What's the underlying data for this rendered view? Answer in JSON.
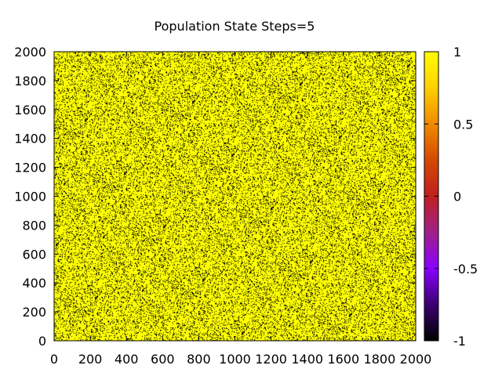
{
  "chart_data": {
    "type": "heatmap",
    "title": "Population State Steps=5",
    "xlabel": "",
    "ylabel": "",
    "xlim": [
      0,
      2000
    ],
    "ylim": [
      0,
      2000
    ],
    "x_ticks": [
      0,
      200,
      400,
      600,
      800,
      1000,
      1200,
      1400,
      1600,
      1800,
      2000
    ],
    "y_ticks": [
      0,
      200,
      400,
      600,
      800,
      1000,
      1200,
      1400,
      1600,
      1800,
      2000
    ],
    "colorbar": {
      "range": [
        -1,
        1
      ],
      "ticks": [
        -1,
        -0.5,
        0,
        0.5,
        1
      ],
      "palette": [
        "#000000",
        "#3a0070",
        "#8a00ff",
        "#a0208a",
        "#c02020",
        "#d44a00",
        "#f08a00",
        "#ffd000",
        "#ffff00"
      ]
    },
    "values": {
      "dominant_value": 1,
      "minority_value": -1,
      "fraction_dominant": 0.82
    },
    "colors": {
      "value_high": "#ffff00",
      "value_low": "#000000"
    },
    "grid": false
  }
}
